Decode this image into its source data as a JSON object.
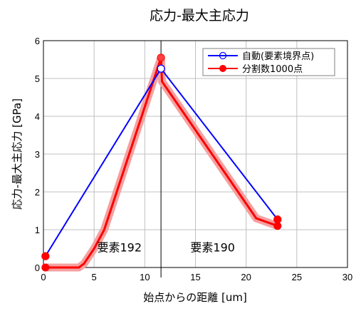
{
  "chart_data": {
    "type": "line",
    "title": "応力-最大主応力",
    "xlabel": "始点からの距離 [um]",
    "ylabel": "応力-最大主応力 [GPa]",
    "xlim": [
      0,
      30
    ],
    "ylim": [
      0,
      6
    ],
    "xticks": [
      "0",
      "5",
      "10",
      "15",
      "20",
      "25",
      "30"
    ],
    "yticks": [
      "0",
      "1",
      "2",
      "3",
      "4",
      "5",
      "6"
    ],
    "grid": true,
    "legend_position": "top-right",
    "series": [
      {
        "name": "自動(要素境界点)",
        "color": "#0000ff",
        "marker": "open-circle",
        "x": [
          0.2,
          11.6,
          23.1
        ],
        "y": [
          0.3,
          5.26,
          1.27
        ]
      },
      {
        "name": "分割数1000点",
        "color": "#ff0000",
        "marker": "filled-circle",
        "x": [
          0.2,
          1.5,
          3.5,
          4.0,
          5.0,
          6.0,
          11.6,
          11.7,
          21.0,
          23.1
        ],
        "y": [
          0.0,
          0.0,
          0.0,
          0.1,
          0.5,
          1.0,
          5.55,
          4.92,
          1.3,
          1.1
        ]
      }
    ],
    "vline_x": 11.6,
    "annotations": [
      {
        "text": "要素192",
        "x": 7.5,
        "y": 0.42
      },
      {
        "text": "要素190",
        "x": 16.7,
        "y": 0.42
      }
    ]
  }
}
